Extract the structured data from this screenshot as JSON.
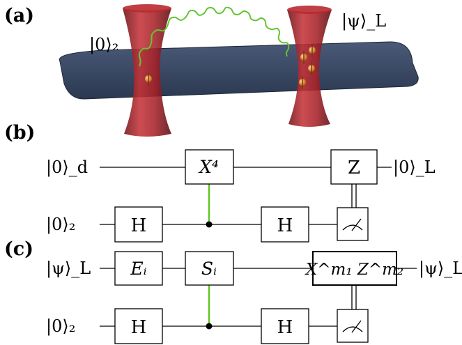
{
  "panels": {
    "a": "(a)",
    "b": "(b)",
    "c": "(c)"
  },
  "panel_a": {
    "left_trap_label": "|0⟩₂",
    "right_trap_label": "|ψ⟩_L",
    "plate_color": "#33425c",
    "beam_color": "#8e1b20",
    "photon_color": "#63c531",
    "atom_color": "#d8831d"
  },
  "panel_b": {
    "input_top": "|0⟩_d",
    "input_bottom": "|0⟩₂",
    "gate_x4": "X⁴",
    "gate_h1": "H",
    "gate_h2": "H",
    "gate_z": "Z",
    "output_top": "|0⟩_L"
  },
  "panel_c": {
    "input_top": "|ψ⟩_L",
    "input_bottom": "|0⟩₂",
    "gate_e": "Eᵢ",
    "gate_s": "Sᵢ",
    "gate_h1": "H",
    "gate_h2": "H",
    "gate_correction": "X^m₁ Z^m₂",
    "output_top": "|ψ⟩_L"
  },
  "icons": [
    "measurement-meter-icon",
    "control-dot-icon"
  ],
  "colors": {
    "control_link": "#5fc61e"
  }
}
